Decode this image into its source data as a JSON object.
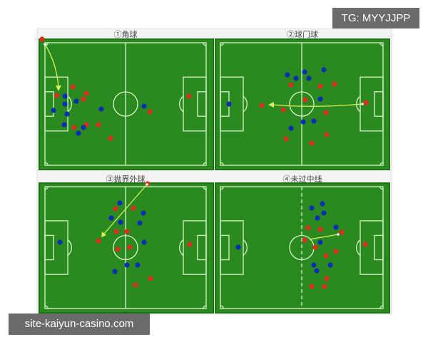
{
  "panels": [
    {
      "title": "①角球"
    },
    {
      "title": "②球门球"
    },
    {
      "title": "③抛界外球"
    },
    {
      "title": "④未过中线"
    }
  ],
  "colors": {
    "pitch": "#2b8a1f",
    "pitch_border": "#1e7316",
    "lines": "#d8f5c8",
    "team_red": "#d8301c",
    "team_blue": "#0a2fb5",
    "arrow": "#d4f25a"
  },
  "watermarks": {
    "top_right": "TG: MYYJJPP",
    "bottom_left": "site-kaiyun-casino.com"
  }
}
